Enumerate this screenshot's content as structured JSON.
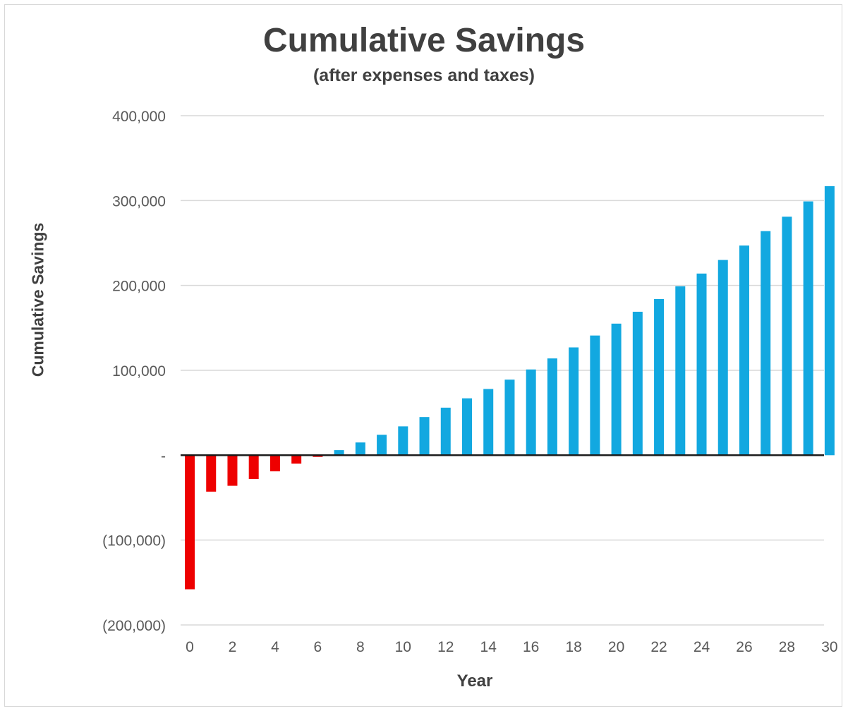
{
  "chart_data": {
    "type": "bar",
    "title": "Cumulative Savings",
    "subtitle": "(after expenses and taxes)",
    "xlabel": "Year",
    "ylabel": "Cumulative Savings",
    "ylim": [
      -200000,
      400000
    ],
    "y_ticks": [
      {
        "value": 400000,
        "label": "400,000"
      },
      {
        "value": 300000,
        "label": "300,000"
      },
      {
        "value": 200000,
        "label": "200,000"
      },
      {
        "value": 100000,
        "label": "100,000"
      },
      {
        "value": 0,
        "label": "-"
      },
      {
        "value": -100000,
        "label": "(100,000)"
      },
      {
        "value": -200000,
        "label": "(200,000)"
      }
    ],
    "x_tick_labels": [
      "0",
      "2",
      "4",
      "6",
      "8",
      "10",
      "12",
      "14",
      "16",
      "18",
      "20",
      "22",
      "24",
      "26",
      "28",
      "30"
    ],
    "grid": true,
    "legend": "none",
    "categories": [
      0,
      1,
      2,
      3,
      4,
      5,
      6,
      7,
      8,
      9,
      10,
      11,
      12,
      13,
      14,
      15,
      16,
      17,
      18,
      19,
      20,
      21,
      22,
      23,
      24,
      25,
      26,
      27,
      28,
      29,
      30
    ],
    "values": [
      -158000,
      -43000,
      -36000,
      -28000,
      -19000,
      -10000,
      -2000,
      6000,
      15000,
      24000,
      34000,
      45000,
      56000,
      67000,
      78000,
      89000,
      101000,
      114000,
      127000,
      141000,
      155000,
      169000,
      184000,
      199000,
      214000,
      230000,
      247000,
      264000,
      281000,
      299000,
      317000
    ],
    "colors": {
      "negative": "#ee0000",
      "positive": "#12a8e0"
    }
  }
}
